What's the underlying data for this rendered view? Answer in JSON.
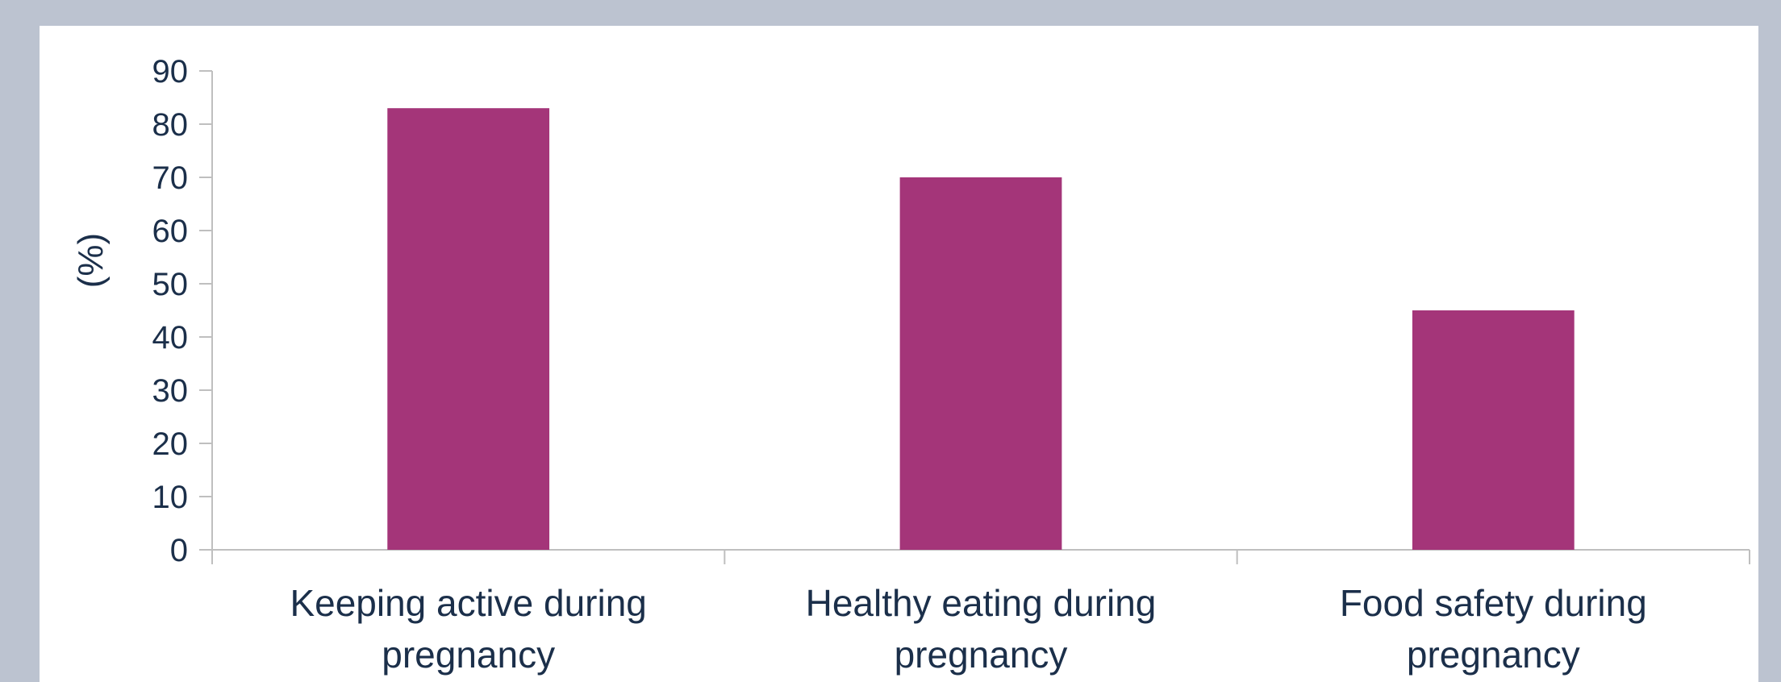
{
  "chart_data": {
    "type": "bar",
    "categories": [
      [
        "Keeping active during",
        "pregnancy"
      ],
      [
        "Healthy eating during",
        "pregnancy"
      ],
      [
        "Food safety during",
        "pregnancy"
      ]
    ],
    "values": [
      83,
      70,
      45
    ],
    "ylabel": "(%)",
    "ylim": [
      0,
      90
    ],
    "yticks": [
      0,
      10,
      20,
      30,
      40,
      50,
      60,
      70,
      80,
      90
    ],
    "grid": false,
    "legend": "none"
  },
  "colors": {
    "bar": "#a43579",
    "axis": "#bfbfbf",
    "text": "#1b2f4a",
    "page_background": "#bcc3d0",
    "panel_background": "#ffffff"
  }
}
